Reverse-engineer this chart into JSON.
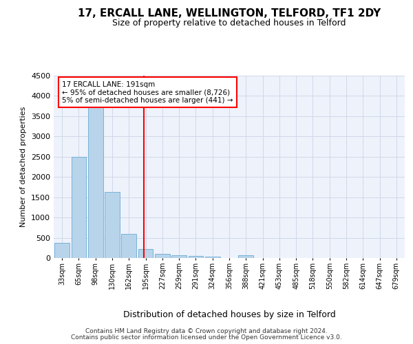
{
  "title": "17, ERCALL LANE, WELLINGTON, TELFORD, TF1 2DY",
  "subtitle": "Size of property relative to detached houses in Telford",
  "xlabel": "Distribution of detached houses by size in Telford",
  "ylabel": "Number of detached properties",
  "categories": [
    "33sqm",
    "65sqm",
    "98sqm",
    "130sqm",
    "162sqm",
    "195sqm",
    "227sqm",
    "259sqm",
    "291sqm",
    "324sqm",
    "356sqm",
    "388sqm",
    "421sqm",
    "453sqm",
    "485sqm",
    "518sqm",
    "550sqm",
    "582sqm",
    "614sqm",
    "647sqm",
    "679sqm"
  ],
  "values": [
    370,
    2500,
    3720,
    1625,
    600,
    220,
    105,
    70,
    55,
    40,
    0,
    60,
    0,
    0,
    0,
    0,
    0,
    0,
    0,
    0,
    0
  ],
  "bar_color": "#b8d4ea",
  "bar_edge_color": "#6aaad4",
  "grid_color": "#d0d8e8",
  "background_color": "#eef2fb",
  "red_line_x": 4.88,
  "annotation_line1": "17 ERCALL LANE: 191sqm",
  "annotation_line2": "← 95% of detached houses are smaller (8,726)",
  "annotation_line3": "5% of semi-detached houses are larger (441) →",
  "ylim": [
    0,
    4500
  ],
  "yticks": [
    0,
    500,
    1000,
    1500,
    2000,
    2500,
    3000,
    3500,
    4000,
    4500
  ],
  "footer_line1": "Contains HM Land Registry data © Crown copyright and database right 2024.",
  "footer_line2": "Contains public sector information licensed under the Open Government Licence v3.0."
}
